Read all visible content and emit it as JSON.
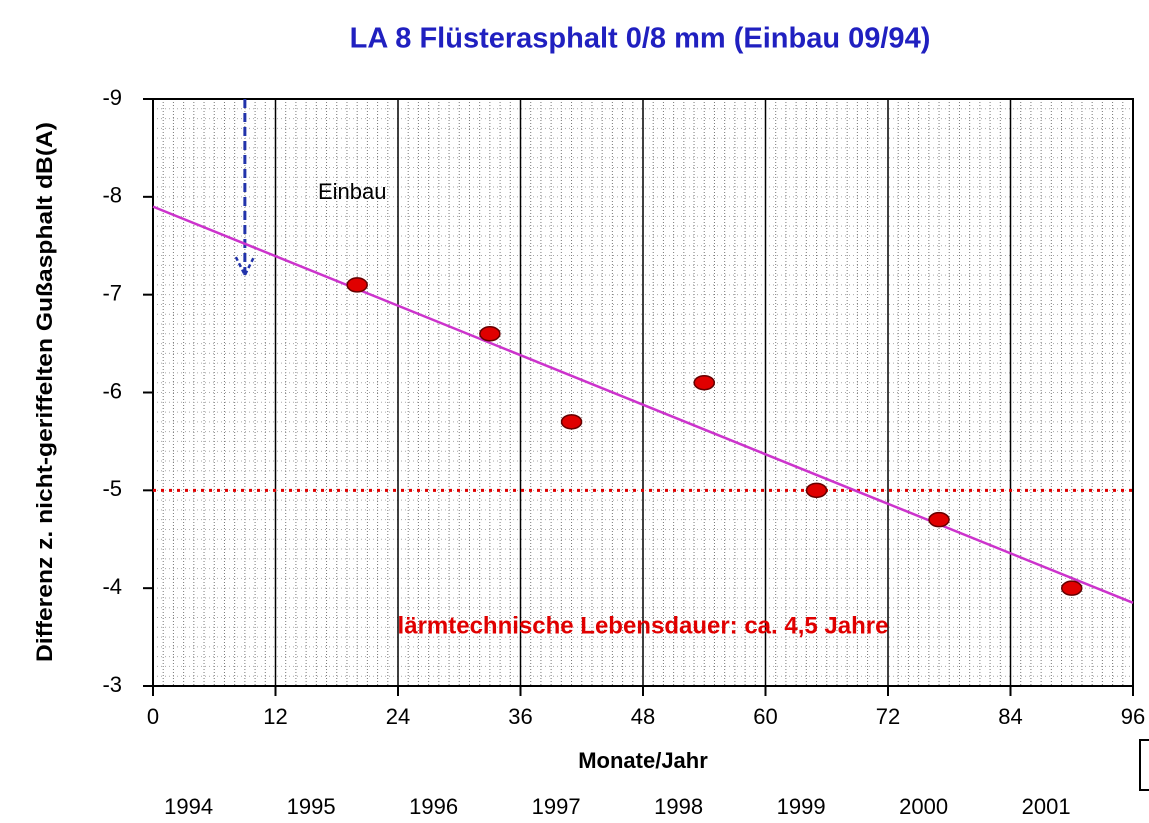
{
  "chart_data": {
    "type": "scatter",
    "title": "LA 8 Flüsterasphalt 0/8 mm (Einbau 09/94)",
    "xlabel": "Monate/Jahr",
    "ylabel": "Differenz z. nicht-geriffelten Gußasphalt dB(A)",
    "x": [
      20,
      33,
      41,
      54,
      65,
      77,
      90
    ],
    "values": [
      -7.1,
      -6.6,
      -5.7,
      -6.1,
      -5.0,
      -4.7,
      -4.0
    ],
    "color": "#e00000",
    "xlim": [
      0,
      96
    ],
    "ylim": [
      -3,
      -9
    ],
    "xticks": [
      0,
      12,
      24,
      36,
      48,
      60,
      72,
      84,
      96
    ],
    "yticks": [
      -9,
      -8,
      -7,
      -6,
      -5,
      -4,
      -3
    ],
    "grid": true,
    "trend": {
      "x": [
        0,
        96
      ],
      "values": [
        -7.9,
        -3.85
      ],
      "color": "#cc33cc"
    },
    "reference_line": {
      "value": -5,
      "color": "#e00000"
    },
    "arrow": {
      "x": 9,
      "values": [
        -9,
        -7.2
      ],
      "color": "#2233aa"
    },
    "annotations": [
      "Einbau",
      "lärmtechnische Lebensdauer: ca. 4,5 Jahre"
    ],
    "years": [
      "1994",
      "1995",
      "1996",
      "1997",
      "1998",
      "1999",
      "2000",
      "2001"
    ]
  }
}
